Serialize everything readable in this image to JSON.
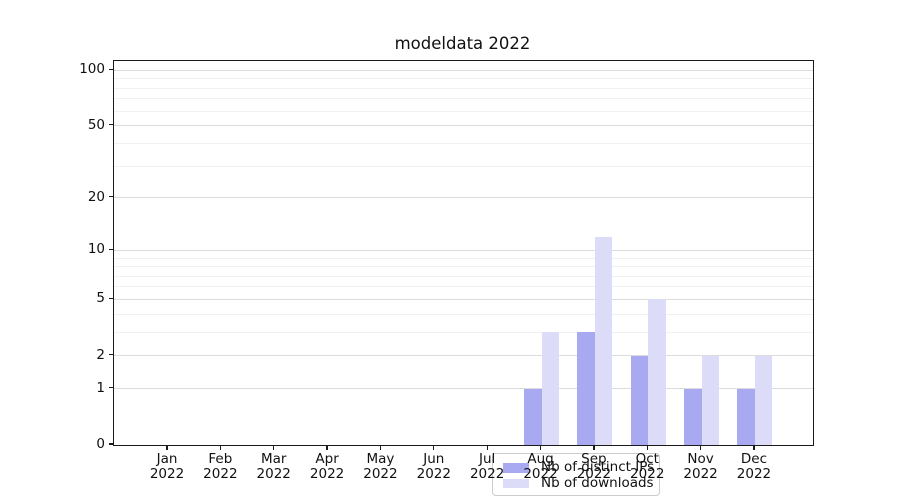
{
  "chart_data": {
    "type": "bar",
    "title": "modeldata 2022",
    "categories": [
      "Jan 2022",
      "Feb 2022",
      "Mar 2022",
      "Apr 2022",
      "May 2022",
      "Jun 2022",
      "Jul 2022",
      "Aug 2022",
      "Sep 2022",
      "Oct 2022",
      "Nov 2022",
      "Dec 2022"
    ],
    "series": [
      {
        "name": "Nb of distinct IPs",
        "color": "#a9a9f2",
        "values": [
          0,
          0,
          0,
          0,
          0,
          0,
          0,
          1,
          3,
          2,
          1,
          1
        ]
      },
      {
        "name": "Nb of downloads",
        "color": "#dcdcf8",
        "values": [
          0,
          0,
          0,
          0,
          0,
          0,
          0,
          3,
          12,
          5,
          2,
          2
        ]
      }
    ],
    "yscale": "log1p",
    "ylim": [
      0,
      113
    ],
    "yticks": [
      0,
      1,
      2,
      5,
      10,
      20,
      50,
      100
    ],
    "gridlines": {
      "major": [
        1,
        2,
        5,
        10,
        20,
        50,
        100
      ],
      "minor": [
        3,
        4,
        6,
        7,
        8,
        9,
        30,
        40,
        60,
        70,
        80,
        90
      ]
    },
    "grid": true,
    "legend_position": "lower center",
    "colors": {
      "grid_major": "#dcdcdc",
      "grid_minor": "#f0f0f0",
      "spine": "#1a1a1a",
      "text": "#111111",
      "legend_border": "#cccccc"
    }
  }
}
